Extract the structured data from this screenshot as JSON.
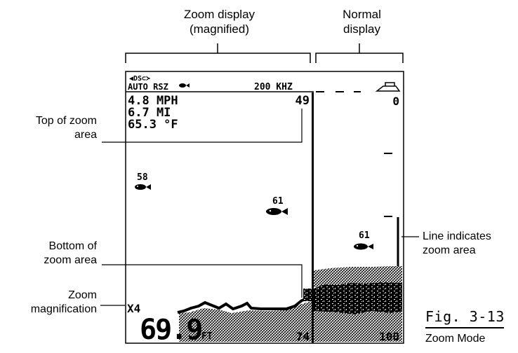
{
  "headers": {
    "zoom": [
      "Zoom display",
      "(magnified)"
    ],
    "normal": [
      "Normal",
      "display"
    ]
  },
  "callouts": {
    "top_of_zoom": [
      "Top of zoom",
      "area"
    ],
    "bottom_of_zoom": [
      "Bottom of",
      "zoom area"
    ],
    "zoom_magnification": [
      "Zoom",
      "magnification"
    ],
    "line_indicates": [
      "Line indicates",
      "zoom area"
    ]
  },
  "figure": {
    "number": "Fig. 3-13",
    "title": "Zoom Mode"
  },
  "screen": {
    "status_top": "◀DS⊂≻",
    "mode": "AUTO RSZ",
    "frequency": "200 KHZ",
    "speed": "4.8 MPH",
    "distance": "6.7 MI",
    "temperature": "65.3 °F",
    "zoom_top_depth": "49",
    "zoom_bottom_depth": "74",
    "normal_top_depth": "0",
    "normal_bottom_depth": "100",
    "fish_depth_1": "58",
    "fish_depth_2": "61",
    "fish_depth_3": "61",
    "zoom_level": "X4",
    "depth_value": "69.9",
    "depth_unit": "FT"
  }
}
